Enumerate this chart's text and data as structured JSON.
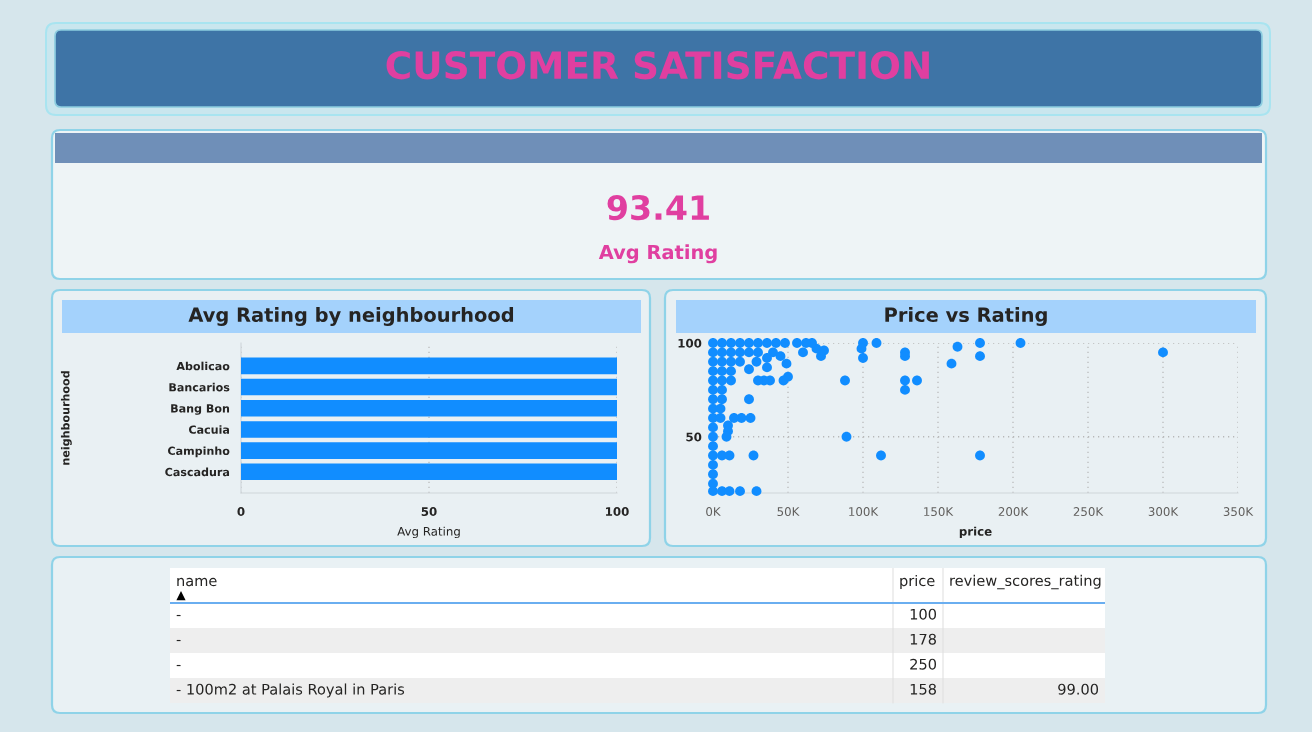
{
  "chart_data": [
    {
      "type": "other",
      "title": "CUSTOMER SATISFACTION"
    },
    {
      "type": "other",
      "values": [
        93.41
      ],
      "categories": [
        "Avg Rating"
      ],
      "data_labels": true
    },
    {
      "type": "bar",
      "orientation": "horizontal",
      "title": "Avg Rating by neighbourhood",
      "categories": [
        "Abolicao",
        "Bancarios",
        "Bang Bon",
        "Cacuia",
        "Campinho",
        "Cascadura"
      ],
      "values": [
        100,
        100,
        100,
        100,
        100,
        100
      ],
      "color": "#118dff",
      "xlim": [
        0,
        100
      ],
      "xticks": [
        0,
        50,
        100
      ],
      "xlabel": "Avg Rating",
      "ylabel": "neighbourhood",
      "grid": "x"
    },
    {
      "type": "scatter",
      "title": "Price vs Rating",
      "color": "#118dff",
      "marker": "circle",
      "xlabel": "price",
      "grid": true,
      "x": [
        0,
        6000,
        12000,
        18000,
        24000,
        30000,
        36000,
        42000,
        48000,
        0,
        6000,
        12000,
        18000,
        24000,
        30000,
        0,
        6000,
        12000,
        18000,
        0,
        6000,
        12000,
        0,
        6000,
        12000,
        0,
        6000,
        0,
        6000,
        0,
        5000,
        0,
        5000,
        0,
        0,
        0,
        0,
        6000,
        11000,
        0,
        0,
        0,
        0,
        6000,
        11000,
        18000,
        29000,
        300000,
        205000,
        178000,
        178000,
        178000,
        163000,
        159000,
        128000,
        128000,
        128000,
        128000,
        136000,
        109000,
        100000,
        99000,
        100000,
        88000,
        89000,
        112000,
        72000,
        74000,
        69000,
        66000,
        62000,
        56000,
        60000,
        50000,
        47000,
        49000,
        45000,
        40000,
        36000,
        36000,
        38000,
        34000,
        30000,
        29000,
        24000,
        24000,
        25000,
        19000,
        14000,
        10000,
        10000,
        9000,
        27000
      ],
      "values": [
        100,
        100,
        100,
        100,
        100,
        100,
        100,
        100,
        100,
        95,
        95,
        95,
        95,
        95,
        95,
        90,
        90,
        90,
        90,
        85,
        85,
        85,
        80,
        80,
        80,
        75,
        75,
        70,
        70,
        65,
        65,
        60,
        60,
        55,
        50,
        45,
        40,
        40,
        40,
        35,
        30,
        25,
        21,
        21,
        21,
        21,
        21,
        95,
        100,
        100,
        93,
        40,
        98,
        89,
        95,
        93,
        80,
        75,
        80,
        100,
        100,
        97,
        92,
        80,
        50,
        40,
        93,
        96,
        97,
        100,
        100,
        100,
        95,
        82,
        80,
        89,
        93,
        95,
        92,
        87,
        80,
        80,
        80,
        90,
        86,
        70,
        60,
        60,
        60,
        56,
        53,
        50,
        40
      ],
      "xlim": [
        0,
        350000
      ],
      "xticks": [
        {
          "value": 0,
          "label": "0K"
        },
        {
          "value": 50000,
          "label": "50K"
        },
        {
          "value": 100000,
          "label": "100K"
        },
        {
          "value": 150000,
          "label": "150K"
        },
        {
          "value": 200000,
          "label": "200K"
        },
        {
          "value": 250000,
          "label": "250K"
        },
        {
          "value": 300000,
          "label": "300K"
        },
        {
          "value": 350000,
          "label": "350K"
        }
      ],
      "ylim": [
        20,
        100
      ],
      "yticks": [
        50,
        100
      ]
    },
    {
      "type": "other",
      "categories": [
        "name",
        "price",
        "review_scores_rating"
      ],
      "cell_labels": [
        [
          "-",
          "100",
          null
        ],
        [
          "-",
          "178",
          null
        ],
        [
          "-",
          "250",
          null
        ],
        [
          "- 100m2 at Palais Royal in Paris",
          "158",
          "99.00"
        ]
      ]
    }
  ]
}
